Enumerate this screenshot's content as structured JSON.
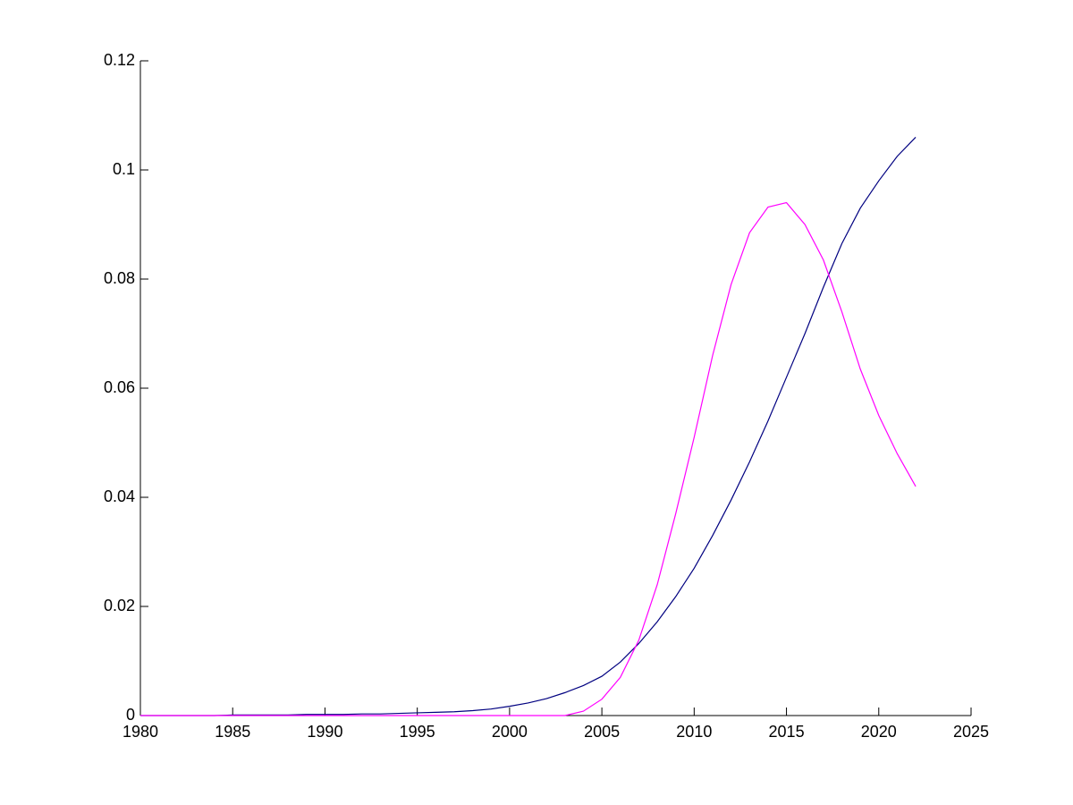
{
  "chart_data": {
    "type": "line",
    "x": [
      1980,
      1981,
      1982,
      1983,
      1984,
      1985,
      1986,
      1987,
      1988,
      1989,
      1990,
      1991,
      1992,
      1993,
      1994,
      1995,
      1996,
      1997,
      1998,
      1999,
      2000,
      2001,
      2002,
      2003,
      2004,
      2005,
      2006,
      2007,
      2008,
      2009,
      2010,
      2011,
      2012,
      2013,
      2014,
      2015,
      2016,
      2017,
      2018,
      2019,
      2020,
      2021,
      2022
    ],
    "series": [
      {
        "color": "#000080",
        "values": [
          0,
          0,
          0,
          0,
          0,
          0.0001,
          0.0001,
          0.0001,
          0.0001,
          0.0002,
          0.0002,
          0.0002,
          0.0003,
          0.0003,
          0.0004,
          0.0005,
          0.0006,
          0.0007,
          0.0009,
          0.0012,
          0.0017,
          0.0023,
          0.0031,
          0.0042,
          0.0055,
          0.0072,
          0.0098,
          0.0132,
          0.0172,
          0.0218,
          0.027,
          0.033,
          0.0395,
          0.0465,
          0.054,
          0.062,
          0.07,
          0.0785,
          0.0865,
          0.093,
          0.098,
          0.1025,
          0.106
        ]
      },
      {
        "color": "#ff00ff",
        "values": [
          0,
          0,
          0,
          0,
          0,
          0,
          0,
          0,
          0,
          0,
          0,
          0,
          0,
          0,
          0,
          0,
          0,
          0,
          0,
          0,
          0,
          0,
          0,
          0,
          0.0008,
          0.003,
          0.007,
          0.0138,
          0.024,
          0.037,
          0.051,
          0.066,
          0.079,
          0.0885,
          0.0932,
          0.094,
          0.09,
          0.0835,
          0.074,
          0.0635,
          0.055,
          0.048,
          0.042
        ]
      }
    ],
    "xlim": [
      1980,
      2025
    ],
    "xticks": [
      1980,
      1985,
      1990,
      1995,
      2000,
      2005,
      2010,
      2015,
      2020,
      2025
    ],
    "ylim": [
      0,
      0.12
    ],
    "yticks": [
      0,
      0.02,
      0.04,
      0.06,
      0.08,
      0.1,
      0.12
    ]
  }
}
